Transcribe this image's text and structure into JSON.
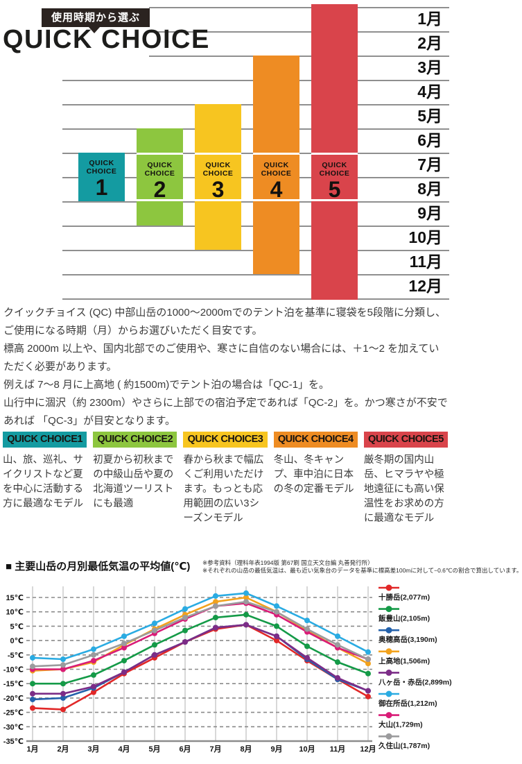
{
  "header": {
    "tag": "使用時期から選ぶ",
    "title": "QUICK CHOICE"
  },
  "intro": {
    "paragraphs": [
      "クイックチョイス (QC) 中部山岳の1000〜2000mでのテント泊を基準に寝袋を5段階に分類し、ご使用になる時期（月）からお選びいただく目安です。",
      "標高 2000m 以上や、国内北部でのご使用や、寒さに自信のない場合には、＋1〜2 を加えていただく必要があります。",
      "例えば 7〜8 月に上高地 ( 約1500m)でテント泊の場合は「QC-1」を。",
      "山行中に涸沢（約 2300m）やさらに上部での宿泊予定であれば「QC-2」を。かつ寒さが不安であれば 「QC-3」が目安となります。"
    ]
  },
  "choices": [
    {
      "header": "QUICK CHOICE1",
      "color": "#149ba1",
      "description": "山、旅、巡礼、サイクリストなど夏を中心に活動する方に最適なモデル"
    },
    {
      "header": "QUICK CHOICE2",
      "color": "#8dc63f",
      "description": "初夏から初秋までの中級山岳や夏の北海道ツーリストにも最適"
    },
    {
      "header": "QUICK CHOICE3",
      "color": "#f7c520",
      "description": "春から秋まで幅広くご利用いただけます。もっとも応用範囲の広い3シーズンモデル"
    },
    {
      "header": "QUICK CHOICE4",
      "color": "#ee8c23",
      "description": "冬山、冬キャンプ、車中泊に日本の冬の定番モデル"
    },
    {
      "header": "QUICK CHOICE5",
      "color": "#d9444b",
      "description": "厳冬期の国内山岳、ヒマラヤや極地遠征にも高い保温性をお求めの方に最適なモデル"
    }
  ],
  "temp_chart": {
    "title": "■ 主要山岳の月別最低気温の平均値(℃)",
    "note1": "※参考資料（理科年表1994版 第67刷 国立天文台編 丸善発行所）",
    "note2": "※それぞれの山岳の最低気温は、最も近い気象台のデータを基準に標高差100mに対して−0.6℃の割合で算出しています。"
  },
  "chart_data": [
    {
      "type": "bar",
      "title": "QUICK CHOICE 使用時期（月）レンジ",
      "month_axis": [
        "1月",
        "2月",
        "3月",
        "4月",
        "5月",
        "6月",
        "7月",
        "8月",
        "9月",
        "10月",
        "11月",
        "12月"
      ],
      "bar_label_lines": [
        "QUICK",
        "CHOICE"
      ],
      "bars": [
        {
          "number": "1",
          "color": "#149ba1",
          "start_month": 7,
          "end_month": 8
        },
        {
          "number": "2",
          "color": "#8dc63f",
          "start_month": 6,
          "end_month": 9
        },
        {
          "number": "3",
          "color": "#f7c520",
          "start_month": 5,
          "end_month": 10
        },
        {
          "number": "4",
          "color": "#ee8c23",
          "start_month": 3,
          "end_month": 11
        },
        {
          "number": "5",
          "color": "#d9444b",
          "start_month": 1,
          "end_month": 12
        }
      ]
    },
    {
      "type": "line",
      "title": "主要山岳の月別最低気温の平均値(℃)",
      "x_labels": [
        "1月",
        "2月",
        "3月",
        "4月",
        "5月",
        "6月",
        "7月",
        "8月",
        "9月",
        "10月",
        "11月",
        "12月"
      ],
      "ylim": [
        -35,
        15
      ],
      "y_tick_step": 5,
      "y_tick_labels": [
        "15℃",
        "10℃",
        "5℃",
        "0℃",
        "-5℃",
        "-10℃",
        "-15℃",
        "-20℃",
        "-25℃",
        "-30℃",
        "-35℃"
      ],
      "grid": "dashed-horizontal, solid-vertical",
      "legend_position": "right",
      "series": [
        {
          "name": "十勝岳(2,077m)",
          "color": "#e12828",
          "values": [
            -23.5,
            -24,
            -18,
            -11.5,
            -6,
            -0.5,
            4,
            5.5,
            0,
            -7,
            -13.5,
            -19.5
          ]
        },
        {
          "name": "飯豊山(2,105m)",
          "color": "#149a47",
          "values": [
            -15,
            -15,
            -12,
            -7,
            -1.5,
            3.5,
            8,
            9,
            5,
            -2,
            -7.5,
            -11.5
          ]
        },
        {
          "name": "奥穂高岳(3,190m)",
          "color": "#2361ab",
          "values": [
            -20.5,
            -20,
            -16.5,
            -11,
            -5,
            -0.5,
            4.5,
            5.5,
            1.5,
            -6.5,
            -13.5,
            -17.5
          ]
        },
        {
          "name": "上高地(1,506m)",
          "color": "#f2a21d",
          "values": [
            -10.5,
            -10,
            -7.5,
            -1.5,
            4,
            9,
            13.5,
            15,
            10,
            3.5,
            -2.5,
            -8
          ]
        },
        {
          "name": "八ヶ岳・赤岳(2,899m)",
          "color": "#7c2d87",
          "values": [
            -18.5,
            -18.5,
            -16,
            -11,
            -5,
            -0.5,
            4.5,
            5.5,
            1.5,
            -6,
            -13,
            -17.5
          ]
        },
        {
          "name": "御在所岳(1,212m)",
          "color": "#2aabe2",
          "values": [
            -6,
            -6.5,
            -3,
            1.5,
            6,
            11,
            15.5,
            16.5,
            12,
            7,
            1.5,
            -4
          ]
        },
        {
          "name": "大山(1,729m)",
          "color": "#d91c77",
          "values": [
            -10,
            -10,
            -7,
            -2.5,
            2.5,
            7.5,
            12,
            13,
            9,
            3,
            -2.5,
            -6.5
          ]
        },
        {
          "name": "久住山(1,787m)",
          "color": "#9b9b9d",
          "values": [
            -9,
            -8.5,
            -5,
            -1,
            3.5,
            8,
            12,
            13.5,
            10,
            4,
            -1.5,
            -6.5
          ]
        }
      ]
    }
  ]
}
